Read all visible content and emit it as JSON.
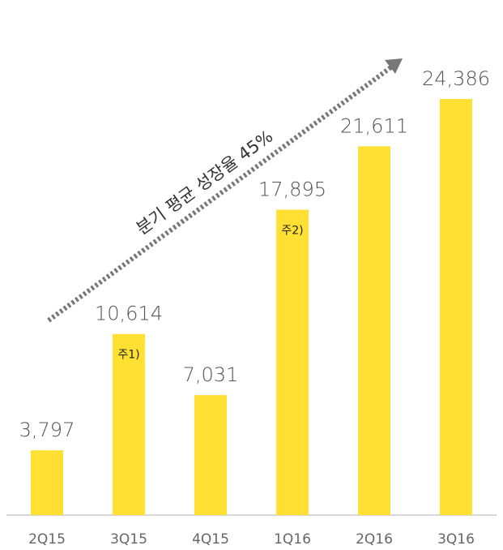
{
  "chart_data": {
    "type": "bar",
    "categories": [
      "2Q15",
      "3Q15",
      "4Q15",
      "1Q16",
      "2Q16",
      "3Q16"
    ],
    "values": [
      3797,
      10614,
      7031,
      17895,
      21611,
      24386
    ],
    "value_labels": [
      "3,797",
      "10,614",
      "7,031",
      "17,895",
      "21,611",
      "24,386"
    ],
    "notes": [
      {
        "category": "3Q15",
        "text": "주1)"
      },
      {
        "category": "1Q16",
        "text": "주2)"
      }
    ],
    "annotation": "분기 평균 성장율 45%",
    "ylim": [
      0,
      27000
    ],
    "colors": {
      "bar": "#FFE033",
      "trend": "#777777",
      "axis": "#cccccc"
    }
  }
}
